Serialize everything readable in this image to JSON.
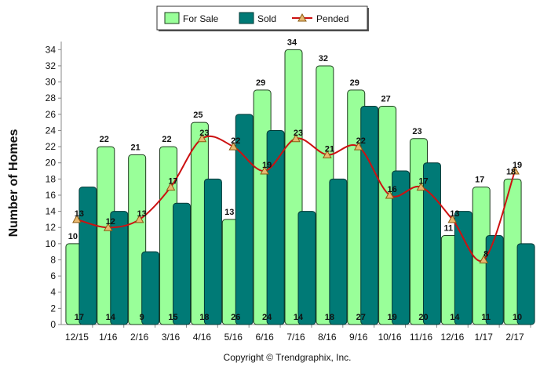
{
  "chart_data": {
    "type": "bar",
    "categories": [
      "12/15",
      "1/16",
      "2/16",
      "3/16",
      "4/16",
      "5/16",
      "6/16",
      "7/16",
      "8/16",
      "9/16",
      "10/16",
      "11/16",
      "12/16",
      "1/17",
      "2/17"
    ],
    "series": [
      {
        "name": "For Sale",
        "type": "bar",
        "color": "#99ff99",
        "values": [
          10,
          22,
          21,
          22,
          25,
          13,
          29,
          34,
          32,
          29,
          27,
          23,
          11,
          17,
          18
        ]
      },
      {
        "name": "Sold",
        "type": "bar",
        "color": "#007a76",
        "values": [
          17,
          14,
          9,
          15,
          18,
          26,
          24,
          14,
          18,
          27,
          19,
          20,
          14,
          11,
          10
        ]
      },
      {
        "name": "Pended",
        "type": "line",
        "color": "#cc1111",
        "marker_color": "#e8b870",
        "values": [
          13,
          12,
          13,
          17,
          23,
          22,
          19,
          23,
          21,
          22,
          16,
          17,
          13,
          8,
          19
        ]
      }
    ],
    "ylabel": "Number of Homes",
    "ylim": [
      0,
      35
    ],
    "yticks": [
      0,
      2,
      4,
      6,
      8,
      10,
      12,
      14,
      16,
      18,
      20,
      22,
      24,
      26,
      28,
      30,
      32,
      34
    ],
    "legend_placement": "top-center",
    "grid": false
  },
  "copyright": "Copyright © Trendgraphix, Inc."
}
